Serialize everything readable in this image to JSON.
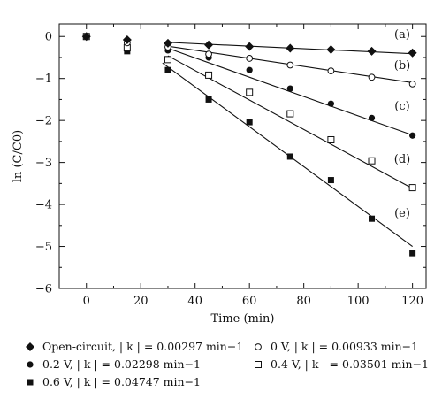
{
  "chart_data": {
    "type": "scatter",
    "xlabel": "Time (min)",
    "ylabel": "ln (C/C0)",
    "xlim": [
      -10,
      125
    ],
    "ylim": [
      -6,
      0.3
    ],
    "xticks": [
      0,
      20,
      40,
      60,
      80,
      100,
      120
    ],
    "yticks": [
      0,
      -1,
      -2,
      -3,
      -4,
      -5,
      -6
    ],
    "grid": false,
    "legend_position": "bottom",
    "series": [
      {
        "name": "Open-circuit, | k | = 0.00297 min−1",
        "curve_label": "(a)",
        "marker": "diamond-filled",
        "x": [
          0,
          15,
          30,
          45,
          60,
          75,
          90,
          105,
          120
        ],
        "y": [
          0,
          -0.08,
          -0.16,
          -0.2,
          -0.24,
          -0.28,
          -0.31,
          -0.35,
          -0.39
        ],
        "fit": {
          "x": [
            30,
            120
          ],
          "y": [
            -0.14,
            -0.41
          ]
        }
      },
      {
        "name": "0 V, | k | = 0.00933 min−1",
        "curve_label": "(b)",
        "marker": "circle-open",
        "x": [
          0,
          15,
          30,
          45,
          60,
          75,
          90,
          105,
          120
        ],
        "y": [
          0,
          -0.15,
          -0.25,
          -0.42,
          -0.52,
          -0.68,
          -0.82,
          -0.97,
          -1.13
        ],
        "fit": {
          "x": [
            30,
            120
          ],
          "y": [
            -0.23,
            -1.1
          ]
        }
      },
      {
        "name": "0.2 V, | k | = 0.02298 min−1",
        "curve_label": "(c)",
        "marker": "circle-filled",
        "x": [
          0,
          15,
          30,
          45,
          60,
          75,
          90,
          105,
          120
        ],
        "y": [
          0,
          -0.2,
          -0.33,
          -0.5,
          -0.8,
          -1.24,
          -1.6,
          -1.94,
          -2.36
        ],
        "fit": {
          "x": [
            30,
            120
          ],
          "y": [
            -0.28,
            -2.35
          ]
        }
      },
      {
        "name": "0.4 V, | k | = 0.03501 min−1",
        "curve_label": "(d)",
        "marker": "square-open",
        "x": [
          0,
          15,
          30,
          45,
          60,
          75,
          90,
          105,
          120
        ],
        "y": [
          0,
          -0.27,
          -0.55,
          -0.92,
          -1.33,
          -1.84,
          -2.46,
          -2.96,
          -3.6
        ],
        "fit": {
          "x": [
            30,
            120
          ],
          "y": [
            -0.46,
            -3.62
          ]
        }
      },
      {
        "name": "0.6 V, | k | = 0.04747 min−1",
        "curve_label": "(e)",
        "marker": "square-filled",
        "x": [
          0,
          15,
          30,
          45,
          60,
          75,
          90,
          105,
          120
        ],
        "y": [
          0,
          -0.35,
          -0.8,
          -1.5,
          -2.04,
          -2.86,
          -3.42,
          -4.34,
          -5.16
        ],
        "fit": {
          "x": [
            28,
            120
          ],
          "y": [
            -0.63,
            -5.0
          ]
        }
      }
    ]
  },
  "legend": {
    "items": [
      {
        "marker": "diamond-filled",
        "label": "Open-circuit, | k | = 0.00297 min−1"
      },
      {
        "marker": "circle-open",
        "label": "0 V, | k | = 0.00933 min−1"
      },
      {
        "marker": "circle-filled",
        "label": "0.2 V, | k | = 0.02298 min−1"
      },
      {
        "marker": "square-open",
        "label": "0.4 V, | k | = 0.03501 min−1"
      },
      {
        "marker": "square-filled",
        "label": "0.6 V, | k | = 0.04747 min−1"
      }
    ]
  }
}
